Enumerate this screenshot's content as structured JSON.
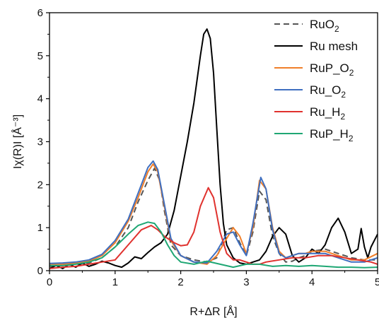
{
  "chart_data": {
    "type": "line",
    "title": "",
    "xlabel": "R+ΔR [Å]",
    "ylabel": "Iχ(R)I [Å⁻³]",
    "xlim": [
      0,
      5
    ],
    "ylim": [
      0,
      6
    ],
    "xticks": [
      0,
      1,
      2,
      3,
      4,
      5
    ],
    "yticks": [
      0,
      1,
      2,
      3,
      4,
      5,
      6
    ],
    "grid": false,
    "legend_position": "top-right",
    "series": [
      {
        "name_parts": [
          "RuO",
          "2",
          ""
        ],
        "color": "#555555",
        "dashed": true,
        "x": [
          0,
          0.2,
          0.4,
          0.6,
          0.8,
          1.0,
          1.2,
          1.35,
          1.5,
          1.6,
          1.68,
          1.75,
          1.85,
          2.0,
          2.2,
          2.4,
          2.55,
          2.7,
          2.8,
          2.9,
          3.0,
          3.1,
          3.2,
          3.3,
          3.4,
          3.5,
          3.6,
          3.7,
          3.8,
          3.9,
          4.0,
          4.2,
          4.4,
          4.6,
          4.8,
          5.0
        ],
        "y": [
          0.1,
          0.12,
          0.15,
          0.18,
          0.3,
          0.55,
          1.0,
          1.6,
          2.1,
          2.38,
          2.1,
          1.4,
          0.6,
          0.35,
          0.25,
          0.2,
          0.3,
          0.95,
          1.0,
          0.65,
          0.35,
          0.9,
          1.85,
          1.65,
          0.8,
          0.4,
          0.2,
          0.22,
          0.3,
          0.35,
          0.45,
          0.5,
          0.4,
          0.3,
          0.25,
          0.25
        ]
      },
      {
        "name_parts": [
          "Ru mesh",
          "",
          ""
        ],
        "color": "#000000",
        "dashed": false,
        "x": [
          0,
          0.1,
          0.2,
          0.3,
          0.4,
          0.5,
          0.6,
          0.7,
          0.8,
          0.9,
          1.0,
          1.1,
          1.2,
          1.3,
          1.4,
          1.5,
          1.6,
          1.7,
          1.8,
          1.9,
          2.0,
          2.1,
          2.2,
          2.3,
          2.35,
          2.4,
          2.45,
          2.5,
          2.55,
          2.6,
          2.65,
          2.7,
          2.8,
          2.9,
          3.0,
          3.1,
          3.2,
          3.3,
          3.4,
          3.5,
          3.6,
          3.7,
          3.8,
          3.9,
          4.0,
          4.1,
          4.2,
          4.3,
          4.4,
          4.5,
          4.6,
          4.7,
          4.75,
          4.8,
          4.85,
          4.9,
          5.0
        ],
        "y": [
          0.05,
          0.12,
          0.05,
          0.15,
          0.08,
          0.18,
          0.1,
          0.15,
          0.22,
          0.18,
          0.12,
          0.08,
          0.18,
          0.32,
          0.28,
          0.42,
          0.55,
          0.65,
          0.85,
          1.4,
          2.2,
          3.0,
          3.9,
          5.0,
          5.5,
          5.62,
          5.4,
          4.6,
          3.3,
          2.0,
          1.1,
          0.6,
          0.3,
          0.18,
          0.15,
          0.2,
          0.25,
          0.45,
          0.8,
          1.0,
          0.85,
          0.35,
          0.2,
          0.3,
          0.5,
          0.4,
          0.6,
          1.0,
          1.22,
          0.9,
          0.4,
          0.5,
          0.98,
          0.55,
          0.3,
          0.55,
          0.85
        ]
      },
      {
        "name_parts": [
          "RuP_O",
          "2",
          ""
        ],
        "color": "#f07f2a",
        "dashed": false,
        "x": [
          0,
          0.2,
          0.4,
          0.6,
          0.8,
          1.0,
          1.2,
          1.35,
          1.5,
          1.58,
          1.65,
          1.75,
          1.85,
          2.0,
          2.2,
          2.4,
          2.55,
          2.7,
          2.8,
          2.9,
          3.0,
          3.1,
          3.2,
          3.3,
          3.4,
          3.5,
          3.6,
          3.7,
          3.8,
          3.9,
          4.0,
          4.2,
          4.4,
          4.6,
          4.8,
          5.0
        ],
        "y": [
          0.15,
          0.15,
          0.18,
          0.22,
          0.35,
          0.65,
          1.15,
          1.7,
          2.3,
          2.48,
          2.3,
          1.5,
          0.7,
          0.35,
          0.2,
          0.15,
          0.35,
          0.75,
          1.0,
          0.8,
          0.4,
          1.0,
          2.1,
          1.9,
          1.0,
          0.45,
          0.3,
          0.35,
          0.4,
          0.4,
          0.45,
          0.45,
          0.35,
          0.25,
          0.25,
          0.4
        ]
      },
      {
        "name_parts": [
          "Ru_O",
          "2",
          ""
        ],
        "color": "#3f6fc0",
        "dashed": false,
        "x": [
          0,
          0.2,
          0.4,
          0.6,
          0.8,
          1.0,
          1.2,
          1.35,
          1.5,
          1.58,
          1.65,
          1.75,
          1.85,
          2.0,
          2.2,
          2.4,
          2.55,
          2.7,
          2.8,
          2.9,
          3.0,
          3.1,
          3.22,
          3.3,
          3.4,
          3.5,
          3.6,
          3.7,
          3.8,
          3.9,
          4.0,
          4.2,
          4.4,
          4.6,
          4.8,
          5.0
        ],
        "y": [
          0.17,
          0.18,
          0.2,
          0.25,
          0.38,
          0.7,
          1.2,
          1.8,
          2.4,
          2.55,
          2.35,
          1.55,
          0.75,
          0.35,
          0.2,
          0.18,
          0.45,
          0.85,
          0.9,
          0.6,
          0.35,
          1.1,
          2.17,
          1.9,
          0.95,
          0.4,
          0.3,
          0.35,
          0.4,
          0.4,
          0.4,
          0.4,
          0.3,
          0.2,
          0.2,
          0.3
        ]
      },
      {
        "name_parts": [
          "Ru_H",
          "2",
          ""
        ],
        "color": "#e0322e",
        "dashed": false,
        "x": [
          0,
          0.2,
          0.4,
          0.6,
          0.8,
          1.0,
          1.2,
          1.4,
          1.55,
          1.65,
          1.75,
          1.9,
          2.0,
          2.1,
          2.2,
          2.3,
          2.42,
          2.5,
          2.6,
          2.7,
          2.8,
          2.9,
          3.0,
          3.1,
          3.2,
          3.3,
          3.5,
          3.7,
          3.9,
          4.1,
          4.3,
          4.5,
          4.7,
          4.9,
          5.0
        ],
        "y": [
          0.05,
          0.08,
          0.1,
          0.15,
          0.2,
          0.25,
          0.6,
          0.95,
          1.05,
          0.95,
          0.8,
          0.65,
          0.58,
          0.6,
          0.9,
          1.5,
          1.93,
          1.7,
          0.9,
          0.4,
          0.25,
          0.25,
          0.2,
          0.15,
          0.15,
          0.2,
          0.25,
          0.3,
          0.3,
          0.35,
          0.35,
          0.3,
          0.25,
          0.2,
          0.15
        ]
      },
      {
        "name_parts": [
          "RuP_H",
          "2",
          ""
        ],
        "color": "#1fa774",
        "dashed": false,
        "x": [
          0,
          0.2,
          0.4,
          0.6,
          0.8,
          1.0,
          1.2,
          1.35,
          1.5,
          1.6,
          1.7,
          1.8,
          1.9,
          2.0,
          2.2,
          2.4,
          2.6,
          2.8,
          3.0,
          3.2,
          3.4,
          3.6,
          3.8,
          4.0,
          4.2,
          4.4,
          4.6,
          4.8,
          5.0
        ],
        "y": [
          0.12,
          0.12,
          0.15,
          0.2,
          0.3,
          0.55,
          0.85,
          1.05,
          1.13,
          1.1,
          0.9,
          0.6,
          0.35,
          0.2,
          0.15,
          0.22,
          0.15,
          0.08,
          0.15,
          0.15,
          0.1,
          0.12,
          0.1,
          0.12,
          0.1,
          0.08,
          0.08,
          0.07,
          0.08
        ]
      }
    ]
  }
}
